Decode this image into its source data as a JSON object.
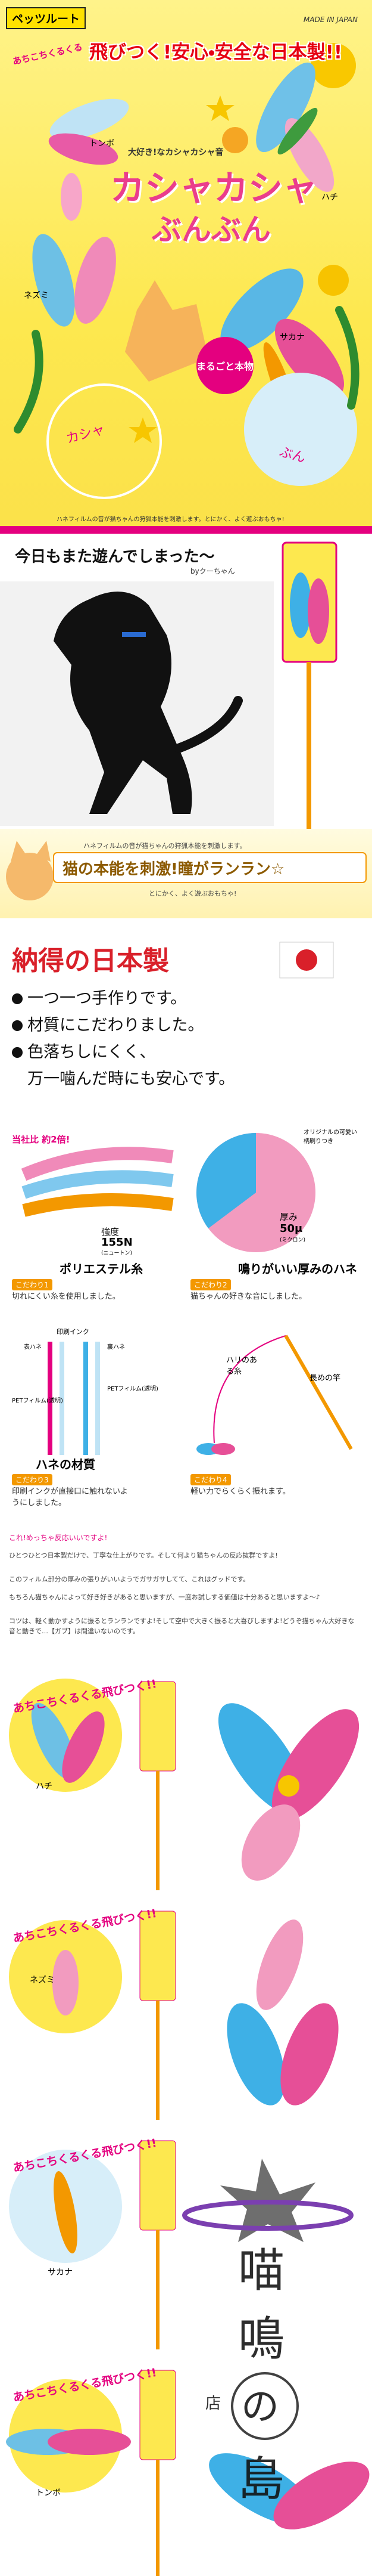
{
  "hero": {
    "brand": "ペッツルート",
    "made_in": "MADE IN JAPAN",
    "catch_small": "あちこちくるくる",
    "catch": "飛びつく!安心・安全な日本製!!",
    "sub": "大好き!なカシャカシャ音",
    "title_line1": "カシャカシャ",
    "title_line2": "ぶんぶん",
    "badge": "まるごと本物",
    "labels": [
      "トンボ",
      "ハチ",
      "ネズミ",
      "サカナ"
    ],
    "sound_1": "カシャ",
    "sound_2": "ぶん",
    "caption": "ハネフィルムの音が猫ちゃんの狩猟本能を刺激します。とにかく、よく遊ぶおもちゃ!"
  },
  "photo": {
    "caption": "今日もまた遊んでしまった〜",
    "credit": "byクーちゃん"
  },
  "banner": {
    "line1": "ハネフィルムの音が猫ちゃんの狩猟本能を刺激します。",
    "headline": "猫の本能を刺激!瞳がランラン☆",
    "line2": "とにかく、よく遊ぶおもちゃ!"
  },
  "japan": {
    "title": "納得の日本製",
    "items": [
      [
        "一つ一つ手作りです。"
      ],
      [
        "材質にこだわりました。"
      ],
      [
        "色落ちしにくく、",
        "万一噛んだ時にも安心です。"
      ]
    ]
  },
  "features": [
    {
      "badge": "当社比 約2倍!",
      "spec_label": "強度",
      "spec_value": "155N",
      "spec_unit": "(ニュートン)",
      "name": "ポリエステル糸",
      "tag": "こだわり1",
      "text": "切れにくい糸を使用しました。"
    },
    {
      "badge": "オリジナルの可愛い柄刷りつき",
      "spec_label": "厚み",
      "spec_value": "50μ",
      "spec_unit": "(ミクロン)",
      "name": "鳴りがいい厚みのハネ",
      "tag": "こだわり2",
      "text": "猫ちゃんの好きな音にしました。"
    },
    {
      "badge": "印刷インク",
      "parts": [
        "表ハネ",
        "裏ハネ",
        "PETフィルム(透明)",
        "PETフィルム(透明)"
      ],
      "name": "ハネの材質",
      "tag": "こだわり3",
      "text": "印刷インクが直接口に触れないようにしました。"
    },
    {
      "parts": [
        "ハリのある糸",
        "長めの竿"
      ],
      "tag": "こだわり4",
      "text": "軽い力でらくらく振れます。"
    }
  ],
  "review": {
    "lead": "これ!めっちゃ反応いいですよ!",
    "paragraphs": [
      "ひとつひとつ日本製だけで、丁寧な仕上がりです。そして何より猫ちゃんの反応抜群ですよ!",
      "このフィルム部分の厚みの張りがいいようでガサガサしてて、これはグッドです。",
      "もちろん猫ちゃんによって好き好きがあると思いますが、一度お試しする価値は十分あると思いますよ〜♪",
      "コツは、軽く動かすように振るとランランですよ!そして空中で大きく振ると大喜びしますよ!どうぞ猫ちゃん大好きな音と動きで…【ガブ】は間違いないのです。"
    ]
  },
  "variants": [
    {
      "catch": "あちこちくるくる飛びつく!!",
      "label": "ハチ"
    },
    {
      "catch": "あちこちくるくる飛びつく!!",
      "label": "ネズミ"
    },
    {
      "catch": "あちこちくるくる飛びつく!!",
      "label": "サカナ"
    },
    {
      "catch": "あちこちくるくる飛びつく!!",
      "label": "トンボ"
    }
  ],
  "watermark": {
    "chars": [
      "喵",
      "鳴",
      "の",
      "島"
    ],
    "sub": "店"
  }
}
